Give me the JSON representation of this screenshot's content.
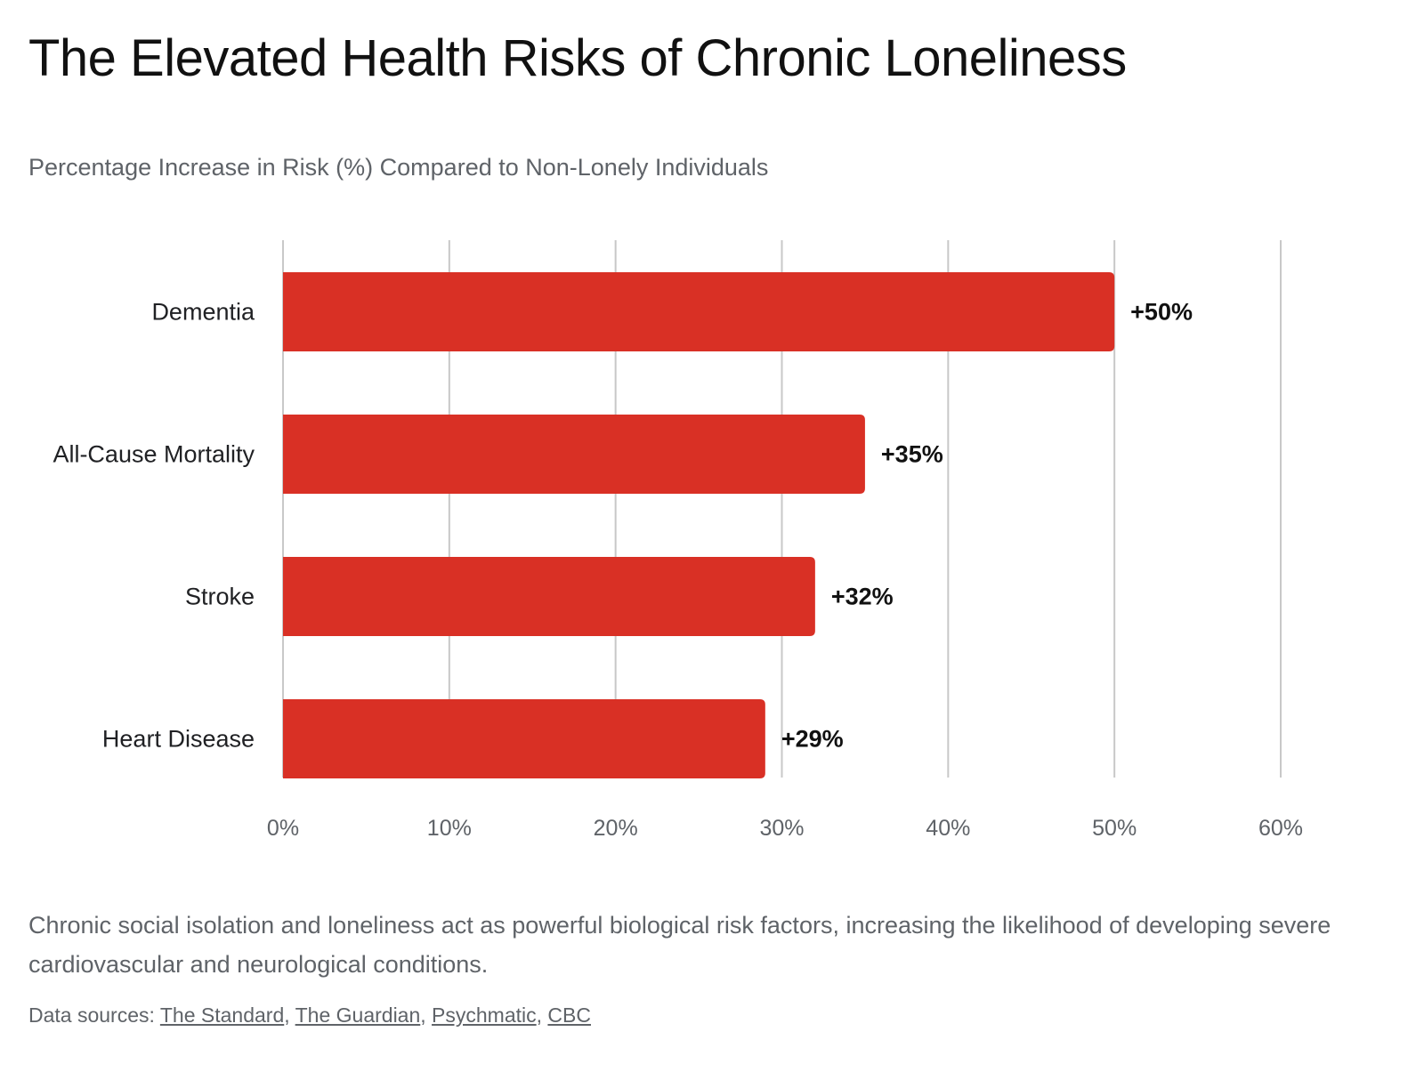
{
  "header": {
    "title": "The Elevated Health Risks of Chronic Loneliness",
    "subtitle": "Percentage Increase in Risk (%) Compared to Non-Lonely Individuals"
  },
  "chart_data": {
    "type": "bar",
    "orientation": "horizontal",
    "categories": [
      "Dementia",
      "All-Cause Mortality",
      "Stroke",
      "Heart Disease"
    ],
    "values": [
      50,
      35,
      32,
      29
    ],
    "data_labels": [
      "+50%",
      "+35%",
      "+32%",
      "+29%"
    ],
    "xlim": [
      0,
      60
    ],
    "x_ticks": [
      0,
      10,
      20,
      30,
      40,
      50,
      60
    ],
    "x_tick_labels": [
      "0%",
      "10%",
      "20%",
      "30%",
      "40%",
      "50%",
      "60%"
    ],
    "grid": true,
    "bar_color": "#d93025"
  },
  "footer": {
    "description": "Chronic social isolation and loneliness act as powerful biological risk factors, increasing the likelihood of developing severe cardiovascular and neurological conditions.",
    "sources_prefix": "Data sources: ",
    "sources": [
      "The Standard",
      "The Guardian",
      "Psychmatic",
      "CBC"
    ]
  }
}
